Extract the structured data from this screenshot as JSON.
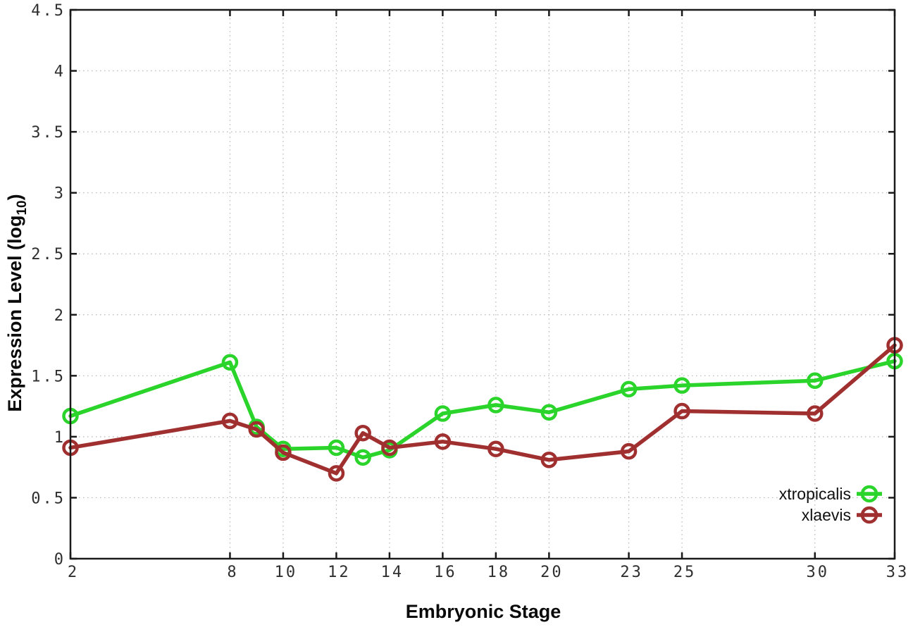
{
  "chart_data": {
    "type": "line",
    "title": "",
    "xlabel": "Embryonic Stage",
    "ylabel": "Expression Level (log10)",
    "ylabel_main": "Expression Level (log",
    "ylabel_sub": "10",
    "ylabel_close": ")",
    "xlim": [
      2,
      33
    ],
    "ylim": [
      0,
      4.5
    ],
    "xticks": [
      2,
      8,
      10,
      12,
      14,
      16,
      18,
      20,
      23,
      25,
      30,
      33
    ],
    "yticks": [
      0,
      0.5,
      1,
      1.5,
      2,
      2.5,
      3,
      3.5,
      4,
      4.5
    ],
    "grid": true,
    "grid_style": "dotted",
    "legend_position": "inside-bottom-right",
    "x": [
      2,
      8,
      9,
      10,
      12,
      13,
      14,
      16,
      18,
      20,
      23,
      25,
      30,
      33
    ],
    "series": [
      {
        "name": "xtropicalis",
        "color": "#2bd42b",
        "marker": "open-circle",
        "values": [
          1.17,
          1.61,
          1.08,
          0.9,
          0.91,
          0.83,
          0.89,
          1.19,
          1.26,
          1.2,
          1.39,
          1.42,
          1.46,
          1.62
        ]
      },
      {
        "name": "xlaevis",
        "color": "#a03030",
        "marker": "open-circle",
        "values": [
          0.91,
          1.13,
          1.06,
          0.87,
          0.7,
          1.03,
          0.91,
          0.96,
          0.9,
          0.81,
          0.88,
          1.21,
          1.19,
          1.75
        ]
      }
    ],
    "colors": {
      "background": "#ffffff",
      "axis": "#1a1a1a",
      "grid": "#b5b5b5",
      "tick_label": "#2f2f2f"
    }
  }
}
